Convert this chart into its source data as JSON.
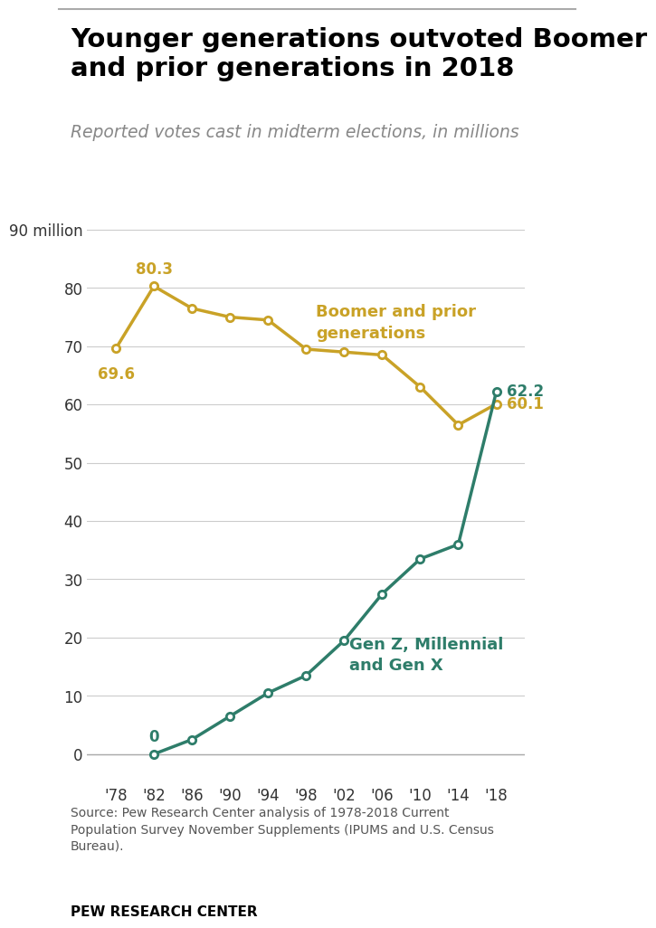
{
  "title": "Younger generations outvoted Boomer\nand prior generations in 2018",
  "subtitle": "Reported votes cast in midterm elections, in millions",
  "years": [
    1978,
    1982,
    1986,
    1990,
    1994,
    1998,
    2002,
    2006,
    2010,
    2014,
    2018
  ],
  "boomer": [
    69.6,
    80.3,
    76.5,
    75.0,
    74.5,
    69.5,
    69.0,
    68.5,
    63.0,
    56.5,
    60.1
  ],
  "younger": [
    null,
    0,
    2.5,
    6.5,
    10.5,
    13.5,
    19.5,
    27.5,
    33.5,
    36.0,
    62.2
  ],
  "boomer_color": "#C9A227",
  "younger_color": "#2E7D6A",
  "ylim": [
    -5,
    95
  ],
  "yticks": [
    0,
    10,
    20,
    30,
    40,
    50,
    60,
    70,
    80,
    90
  ],
  "ytick_labels": [
    "0",
    "10",
    "20",
    "30",
    "40",
    "50",
    "60",
    "70",
    "80",
    "90 million"
  ],
  "xtick_labels": [
    "'78",
    "'82",
    "'86",
    "'90",
    "'94",
    "'98",
    "'02",
    "'06",
    "'10",
    "'14",
    "'18"
  ],
  "source_text": "Source: Pew Research Center analysis of 1978-2018 Current\nPopulation Survey November Supplements (IPUMS and U.S. Census\nBureau).",
  "footer_text": "PEW RESEARCH CENTER",
  "bg_color": "#FFFFFF",
  "grid_color": "#CCCCCC"
}
